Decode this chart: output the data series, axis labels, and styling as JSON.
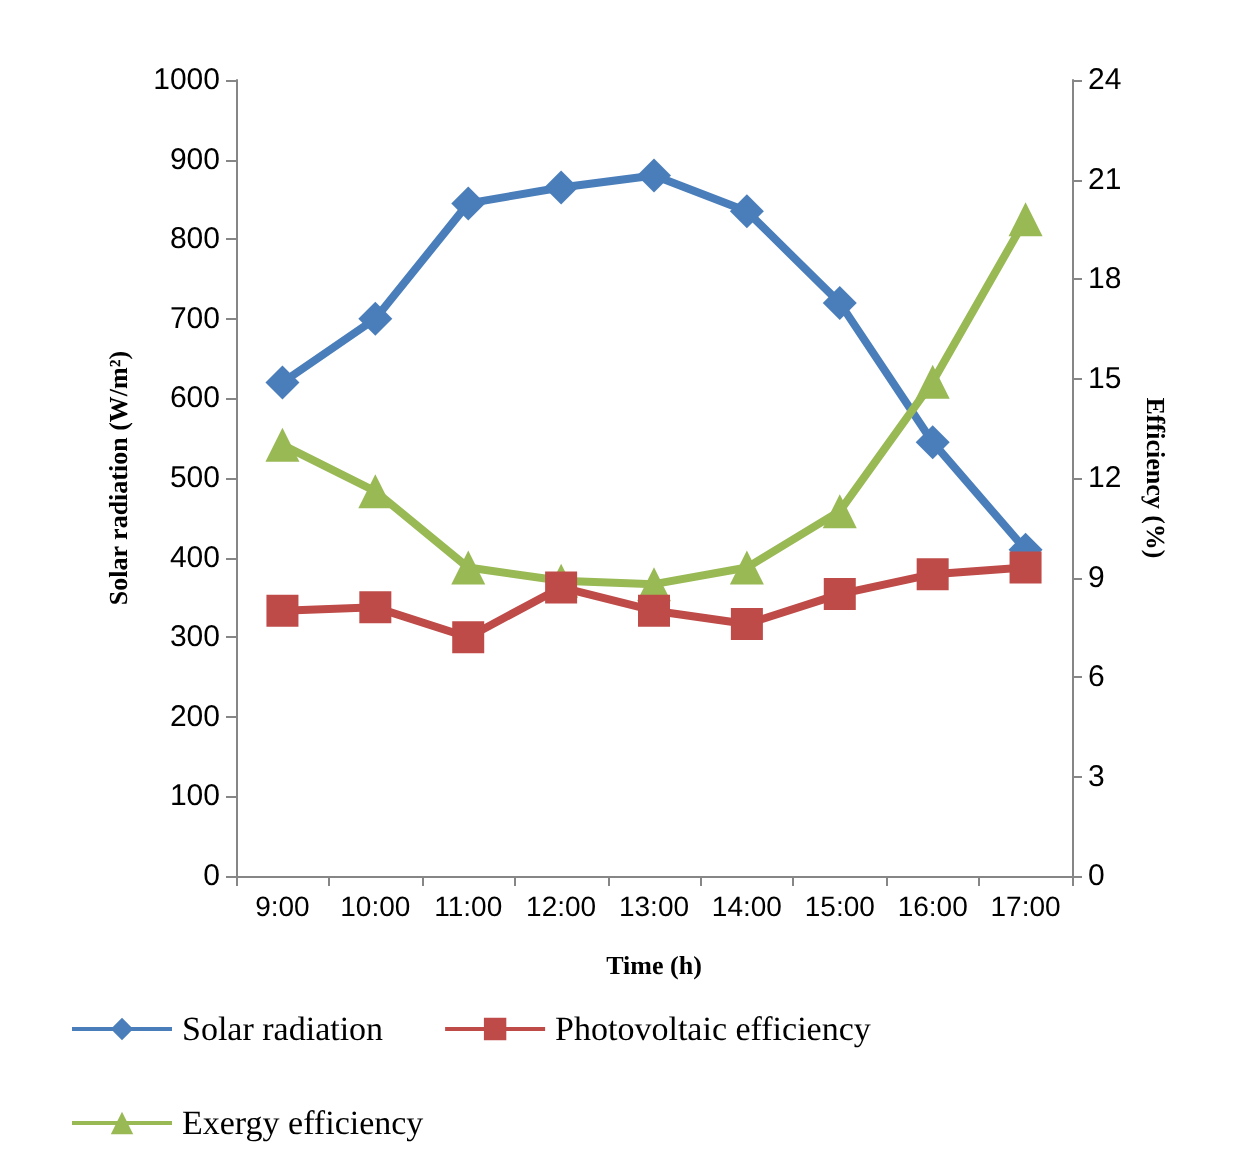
{
  "chart_data": {
    "type": "line",
    "xlabel": "Time (h)",
    "ylabel": "Solar radiation (W/m²)",
    "y2label": "Efficiency (%)",
    "categories": [
      "9:00",
      "10:00",
      "11:00",
      "12:00",
      "13:00",
      "14:00",
      "15:00",
      "16:00",
      "17:00"
    ],
    "series": [
      {
        "name": "Solar radiation",
        "color": "#4a7ebb",
        "marker": "diamond",
        "values": [
          620,
          700,
          845,
          865,
          880,
          835,
          720,
          545,
          410
        ]
      },
      {
        "name": "Photovoltaic efficiency",
        "color": "#be4b48",
        "marker": "square",
        "axis": "y2",
        "values": [
          8.0,
          8.1,
          7.2,
          8.7,
          8.0,
          7.6,
          8.5,
          9.1,
          9.3
        ]
      },
      {
        "name": "Exergy efficiency",
        "color": "#98b954",
        "marker": "triangle",
        "axis": "y2",
        "values": [
          13.0,
          11.6,
          9.3,
          8.9,
          8.8,
          9.3,
          11.0,
          14.9,
          19.8
        ]
      }
    ],
    "ylim": [
      0,
      1000
    ],
    "yticks": [
      0,
      100,
      200,
      300,
      400,
      500,
      600,
      700,
      800,
      900,
      1000
    ],
    "y2lim": [
      0,
      24
    ],
    "y2ticks": [
      0,
      3,
      6,
      9,
      12,
      15,
      18,
      21,
      24
    ],
    "grid": false,
    "legend": "bottom"
  }
}
